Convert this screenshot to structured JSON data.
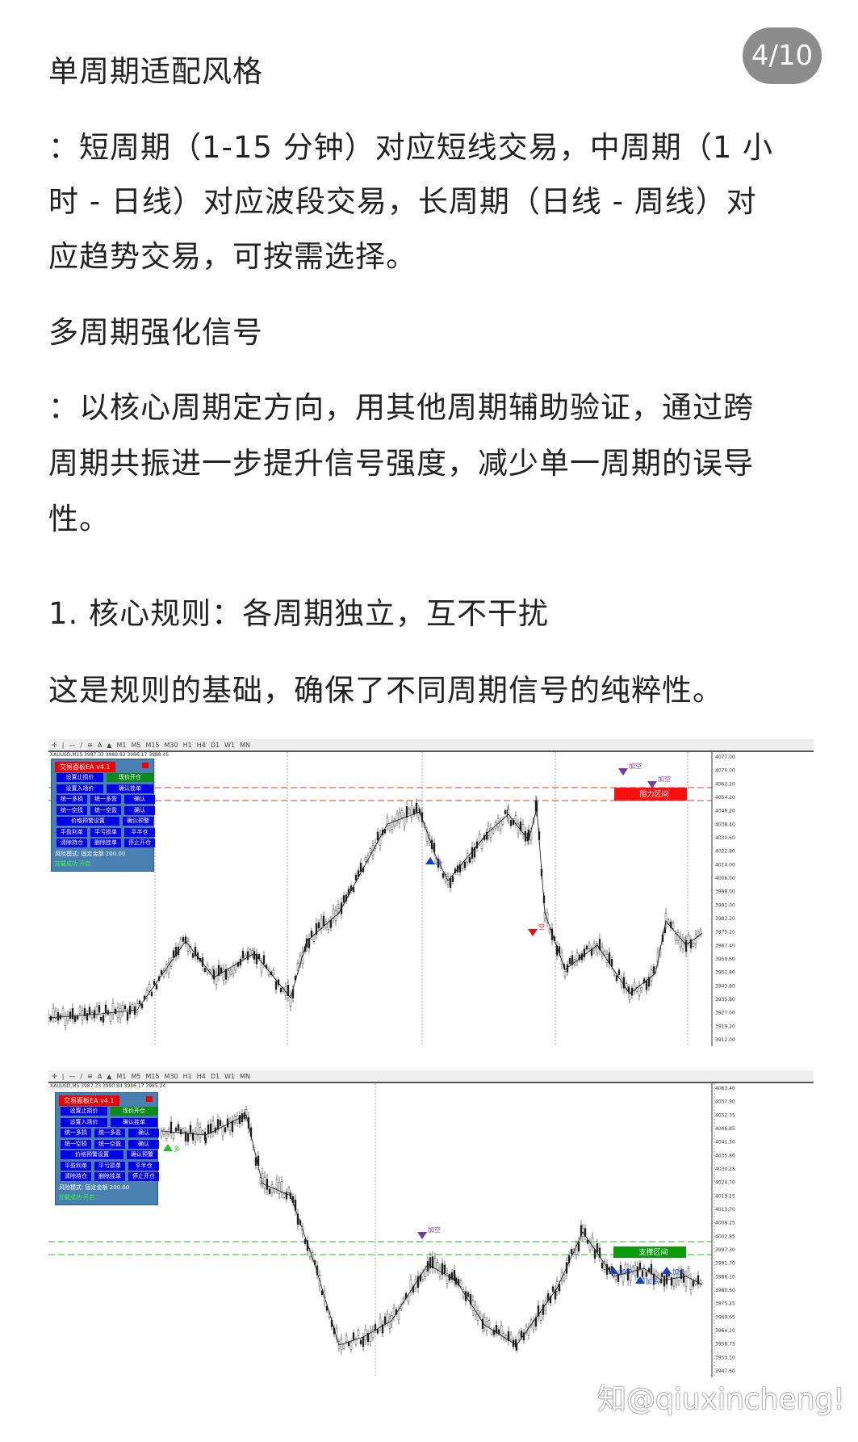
{
  "page_badge": "4/10",
  "sections": [
    {
      "heading": "单周期适配风格",
      "lines": [
        "：短周期（1-15 分钟）对应短线交易，中周期（1 小",
        "时 - 日线）对应波段交易，长周期（日线 - 周线）对",
        "应趋势交易，可按需选择。"
      ]
    },
    {
      "heading": "多周期强化信号",
      "lines": [
        "：以核心周期定方向，用其他周期辅助验证，通过跨",
        "周期共振进一步提升信号强度，减少单一周期的误导",
        "性。"
      ]
    }
  ],
  "rule_heading": "1. 核心规则：各周期独立，互不干扰",
  "rule_text": "这是规则的基础，确保了不同周期信号的纯粹性。",
  "watermark": "知@qiuxincheng!",
  "panel": {
    "title": "交易面板EA v4.1",
    "buttons": [
      "设置止损价",
      "现价开仓",
      "设置入场价",
      "确认挂单",
      "统一多损",
      "统一多盈",
      "确认",
      "统一空损",
      "统一空盈",
      "确认",
      "价格预警设置",
      "确认预警",
      "平盈利单",
      "平亏损单",
      "平半仓",
      "清除持仓",
      "删除挂单",
      "停止开仓"
    ],
    "risk": "风险模式: 固定金额 200.00",
    "status": "加载成功  开启"
  },
  "chart1": {
    "timeframes": [
      "M1",
      "M5",
      "M15",
      "M30",
      "H1",
      "H4",
      "D1",
      "W1",
      "MN"
    ],
    "symbol": "XAUUSD,M15  3987.33 3988.82 3986.17 3988.45",
    "ticks": [
      "4077.00",
      "4070.00",
      "4062.20",
      "4054.20",
      "4046.20",
      "4038.40",
      "4030.60",
      "4022.80",
      "4014.00",
      "4006.00",
      "3998.00",
      "3991.00",
      "3983.20",
      "3975.20",
      "3967.40",
      "3959.60",
      "3951.80",
      "3943.60",
      "3935.80",
      "3927.00",
      "3919.20",
      "3912.00"
    ],
    "zone_label": "阻力区间",
    "zone_color": "#ff1010",
    "signals": [
      "加空",
      "加空",
      "多",
      "空"
    ]
  },
  "chart2": {
    "timeframes": [
      "M1",
      "M5",
      "M15",
      "M30",
      "H1",
      "H4",
      "D1",
      "W1",
      "MN"
    ],
    "symbol": "XAUUSD,M5  3987.33 3990.84 3986.17 3985.24",
    "ticks": [
      "4063.40",
      "4057.90",
      "4052.35",
      "4046.85",
      "4041.30",
      "4035.80",
      "4030.25",
      "4024.70",
      "4019.25",
      "4013.70",
      "4008.25",
      "4002.85",
      "3997.30",
      "3991.70",
      "3986.10",
      "3980.60",
      "3975.25",
      "3969.65",
      "3964.10",
      "3958.75",
      "3953.10",
      "3947.60"
    ],
    "zone_label": "支撑区间",
    "zone_color": "#0a9a0a",
    "signals": [
      "加多",
      "加多",
      "加多",
      "加空",
      "多"
    ]
  }
}
